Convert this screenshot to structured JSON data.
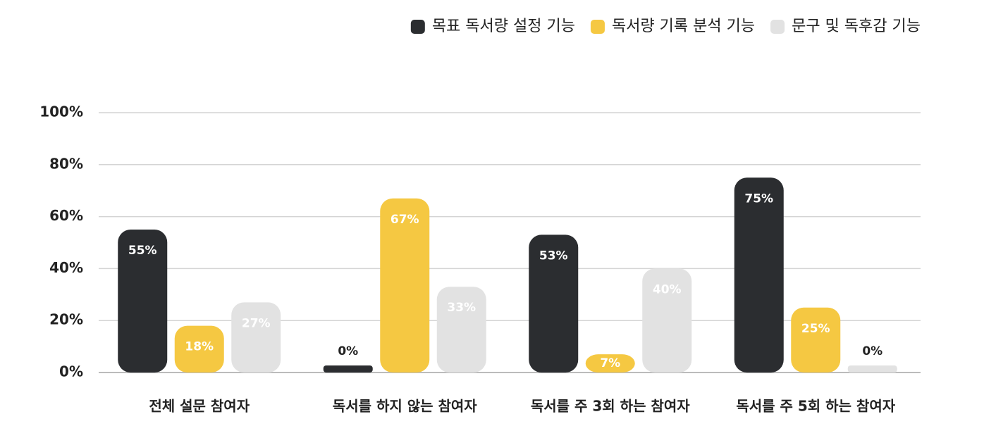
{
  "chart_data": {
    "type": "bar",
    "categories": [
      "전체 설문 참여자",
      "독서를 하지 않는 참여자",
      "독서를 주 3회 하는 참여자",
      "독서를 주 5회 하는 참여자"
    ],
    "series": [
      {
        "name": "목표 독서량 설정 기능",
        "color": "#2b2d30",
        "values": [
          55,
          0,
          53,
          75
        ],
        "value_labels": [
          "55%",
          "0%",
          "53%",
          "75%"
        ]
      },
      {
        "name": "독서량 기록 분석 기능",
        "color": "#f5c842",
        "values": [
          18,
          67,
          7,
          25
        ],
        "value_labels": [
          "18%",
          "67%",
          "7%",
          "25%"
        ]
      },
      {
        "name": "문구 및 독후감 기능",
        "color": "#e2e2e2",
        "values": [
          27,
          33,
          40,
          0
        ],
        "value_labels": [
          "27%",
          "33%",
          "40%",
          "0%"
        ]
      }
    ],
    "ylim": [
      0,
      100
    ],
    "yticks": [
      {
        "value": 0,
        "label": "0%"
      },
      {
        "value": 20,
        "label": "20%"
      },
      {
        "value": 40,
        "label": "40%"
      },
      {
        "value": 60,
        "label": "60%"
      },
      {
        "value": 80,
        "label": "80%"
      },
      {
        "value": 100,
        "label": "100%"
      }
    ],
    "grid": true,
    "legend": "top-right"
  }
}
